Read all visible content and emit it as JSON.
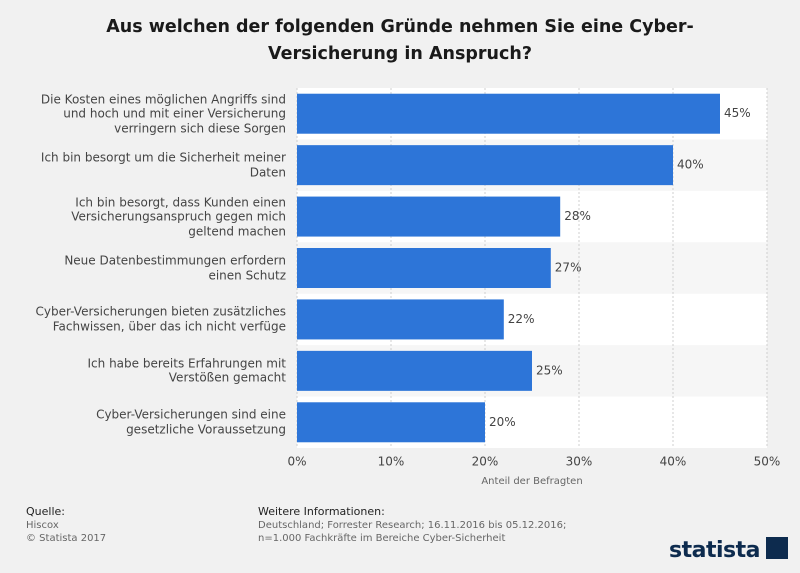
{
  "chart_data": {
    "type": "barh",
    "title": "Aus welchen der folgenden Gründe nehmen Sie eine Cyber-Versicherung in Anspruch?",
    "categories": [
      "Die Kosten eines möglichen Angriffs sind und hoch und mit einer Versicherung verringern sich diese Sorgen",
      "Ich bin besorgt um die Sicherheit meiner Daten",
      "Ich bin besorgt, dass Kunden einen Versicherungsanspruch gegen mich geltend machen",
      "Neue Datenbestimmungen erfordern einen Schutz",
      "Cyber-Versicherungen bieten zusätzliches Fachwissen, über das ich nicht verfüge",
      "Ich habe bereits Erfahrungen mit Verstößen gemacht",
      "Cyber-Versicherungen sind eine gesetzliche Voraussetzung"
    ],
    "values": [
      45,
      40,
      28,
      27,
      22,
      25,
      20
    ],
    "value_labels": [
      "45%",
      "40%",
      "28%",
      "27%",
      "22%",
      "25%",
      "20%"
    ],
    "color": "#2d75d8",
    "xlim": [
      0,
      50
    ],
    "xticks": [
      {
        "value": 0,
        "label": "0%"
      },
      {
        "value": 10,
        "label": "10%"
      },
      {
        "value": 20,
        "label": "20%"
      },
      {
        "value": 30,
        "label": "30%"
      },
      {
        "value": 40,
        "label": "40%"
      },
      {
        "value": 50,
        "label": "50%"
      }
    ],
    "xlabel": "Anteil der Befragten",
    "grid": true
  },
  "footer": {
    "source_heading": "Quelle:",
    "source": "Hiscox",
    "copyright": "© Statista 2017",
    "info_heading": "Weitere Informationen:",
    "info": "Deutschland; Forrester Research; 16.11.2016 bis 05.12.2016; n=1.000 Fachkräfte im Bereiche Cyber-Sicherheit",
    "logo": "statista"
  }
}
